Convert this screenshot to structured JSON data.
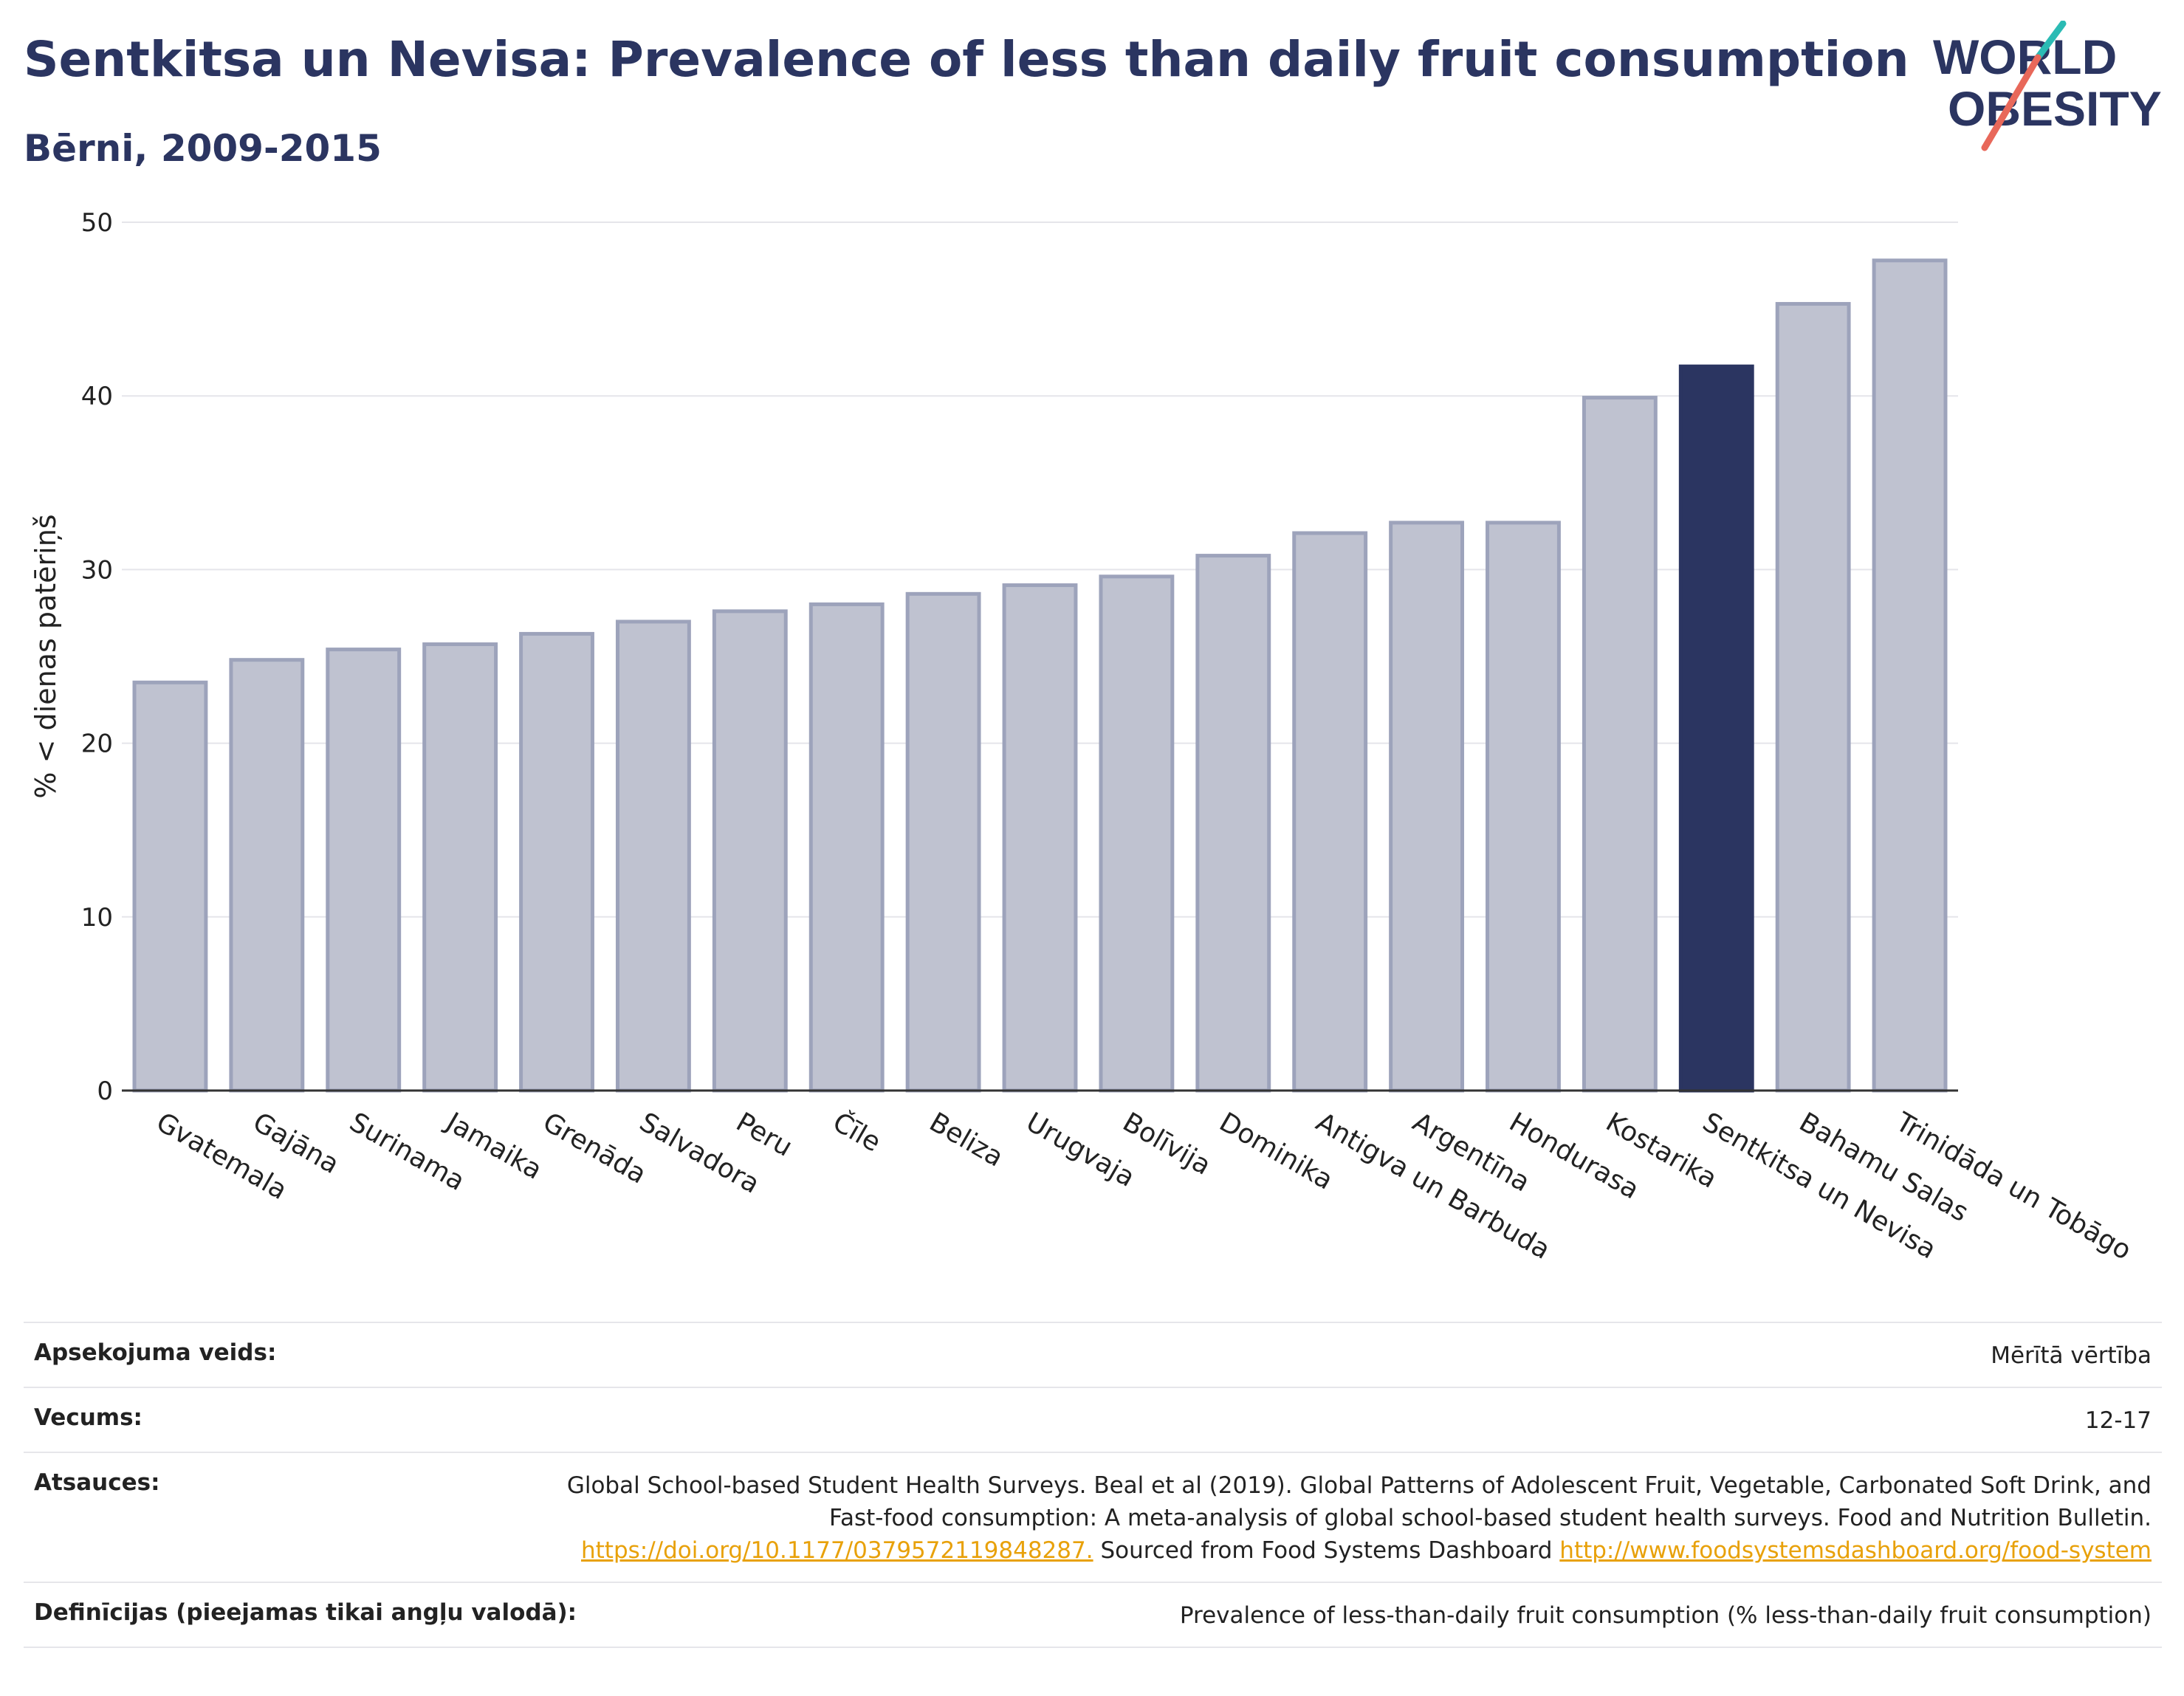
{
  "header": {
    "title": "Sentkitsa un Nevisa: Prevalence of less than daily fruit consumption",
    "subtitle": "Bērni, 2009-2015"
  },
  "logo": {
    "line1": "WORLD",
    "line2": "OBESITY"
  },
  "colors": {
    "highlight": "#2b3561",
    "bar_fill": "#bfc2d0",
    "bar_stroke": "#9da3bb",
    "grid": "#e5e5ea",
    "logo_teal": "#2bbbb4",
    "logo_coral": "#e8685a",
    "link": "#e8a10a"
  },
  "chart_data": {
    "type": "bar",
    "title": "Sentkitsa un Nevisa: Prevalence of less than daily fruit consumption",
    "subtitle": "Bērni, 2009-2015",
    "xlabel": "",
    "ylabel": "% < dienas patēriņš",
    "ylim": [
      0,
      50
    ],
    "yticks": [
      0,
      10,
      20,
      30,
      40,
      50
    ],
    "grid": true,
    "highlight_category": "Sentkitsa un Nevisa",
    "categories": [
      "Gvatemala",
      "Gajāna",
      "Surinama",
      "Jamaika",
      "Grenāda",
      "Salvadora",
      "Peru",
      "Čīle",
      "Beliza",
      "Urugvaja",
      "Bolīvija",
      "Dominika",
      "Antigva un Barbuda",
      "Argentīna",
      "Hondurasa",
      "Kostarika",
      "Sentkitsa un Nevisa",
      "Bahamu Salas",
      "Trinidāda un Tobāgo"
    ],
    "values": [
      23.5,
      24.8,
      25.4,
      25.7,
      26.3,
      27.0,
      27.6,
      28.0,
      28.6,
      29.1,
      29.6,
      30.8,
      32.1,
      32.7,
      32.7,
      39.9,
      41.7,
      45.3,
      47.8
    ]
  },
  "meta": {
    "survey_label": "Apsekojuma veids:",
    "survey_value": "Mērītā vērtība",
    "age_label": "Vecums:",
    "age_value": "12-17",
    "refs_label": "Atsauces:",
    "refs_text1": "Global School-based Student Health Surveys. Beal et al (2019). Global Patterns of Adolescent Fruit, Vegetable, Carbonated Soft Drink, and Fast-food consumption: A meta-analysis of global school-based student health surveys. Food and Nutrition Bulletin.",
    "refs_link1": "https://doi.org/10.1177/0379572119848287.",
    "refs_text2": "Sourced from Food Systems Dashboard",
    "refs_link2": "http://www.foodsystemsdashboard.org/food-system",
    "defs_label": "Definīcijas (pieejamas tikai angļu valodā):",
    "defs_value": "Prevalence of less-than-daily fruit consumption (% less-than-daily fruit consumption)"
  }
}
